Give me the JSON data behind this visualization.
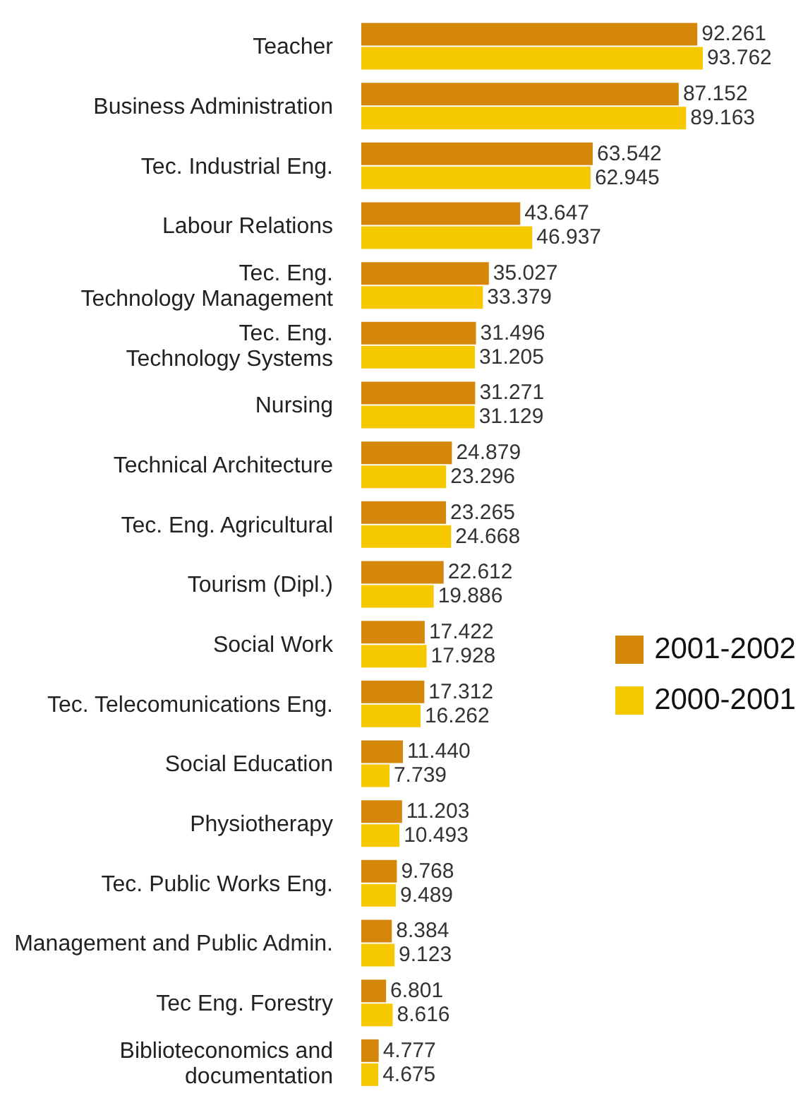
{
  "chart_data": {
    "type": "bar",
    "orientation": "horizontal",
    "legend": "right",
    "categories": [
      "Teacher",
      "Business Administration",
      "Tec. Industrial Eng.",
      "Labour Relations",
      "Tec. Eng.\nTechnology Management",
      "Tec. Eng.\nTechnology Systems",
      "Nursing",
      "Technical Architecture",
      "Tec. Eng. Agricultural",
      "Tourism (Dipl.)",
      "Social Work",
      "Tec. Telecomunications Eng.",
      "Social Education",
      "Physiotherapy",
      "Tec. Public Works Eng.",
      "Management and Public Admin.",
      "Tec Eng. Forestry",
      "Biblioteconomics and\ndocumentation"
    ],
    "series": [
      {
        "name": "2001-2002",
        "color": "#d4870a",
        "values": [
          92.261,
          87.152,
          63.542,
          43.647,
          35.027,
          31.496,
          31.271,
          24.879,
          23.265,
          22.612,
          17.422,
          17.312,
          11.44,
          11.203,
          9.768,
          8.384,
          6.801,
          4.777
        ],
        "value_labels": [
          "92.261",
          "87.152",
          "63.542",
          "43.647",
          "35.027",
          "31.496",
          "31.271",
          "24.879",
          "23.265",
          "22.612",
          "17.422",
          "17.312",
          "11.440",
          "11.203",
          "9.768",
          "8.384",
          "6.801",
          "4.777"
        ]
      },
      {
        "name": "2000-2001",
        "color": "#f5c800",
        "values": [
          93.762,
          89.163,
          62.945,
          46.937,
          33.379,
          31.205,
          31.129,
          23.296,
          24.668,
          19.886,
          17.928,
          16.262,
          7.739,
          10.493,
          9.489,
          9.123,
          8.616,
          4.675
        ],
        "value_labels": [
          "93.762",
          "89.163",
          "62.945",
          "46.937",
          "33.379",
          "31.205",
          "31.129",
          "23.296",
          "24.668",
          "19.886",
          "17.928",
          "16.262",
          "7.739",
          "10.493",
          "9.489",
          "9.123",
          "8.616",
          "4.675"
        ]
      }
    ]
  }
}
